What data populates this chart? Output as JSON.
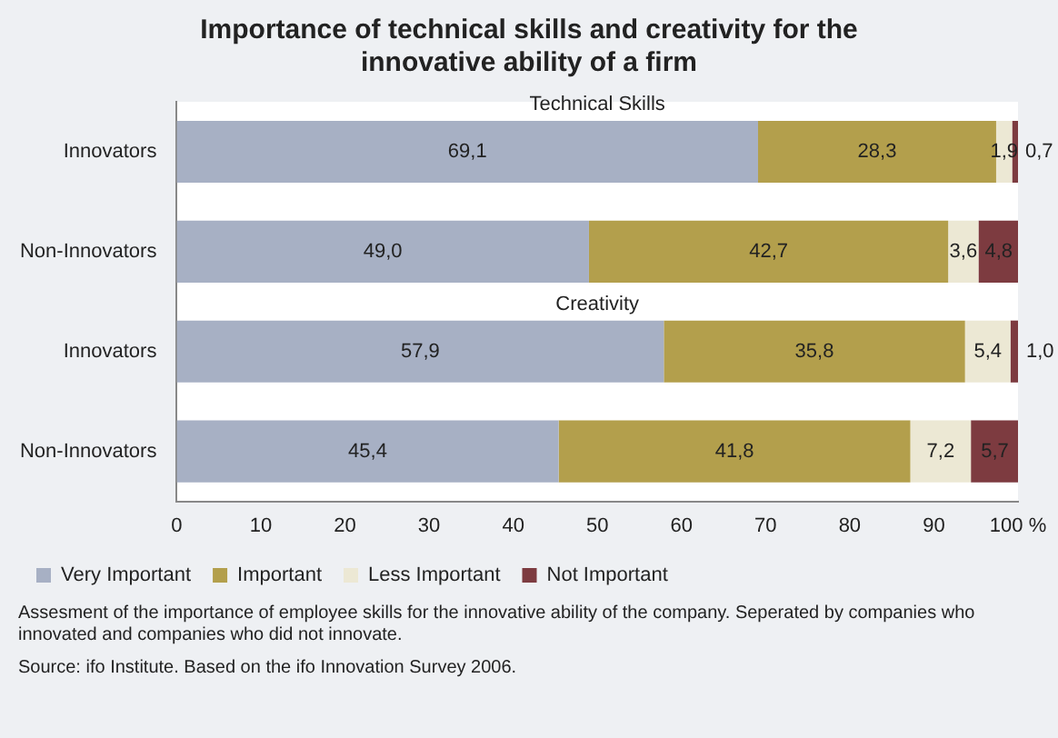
{
  "chart_data": {
    "type": "bar",
    "orientation": "horizontal",
    "stacked": true,
    "title": "Importance of technical skills and creativity for the innovative ability of a firm",
    "categories": [
      "Innovators",
      "Non-Innovators",
      "Innovators",
      "Non-Innovators"
    ],
    "series": [
      {
        "name": "Very Important",
        "color": "#a7b0c4",
        "values": [
          69.1,
          49.0,
          57.9,
          45.4
        ],
        "value_labels": [
          "69,1",
          "49,0",
          "57,9",
          "45,4"
        ]
      },
      {
        "name": "Important",
        "color": "#b39f4c",
        "values": [
          28.3,
          42.7,
          35.8,
          41.8
        ],
        "value_labels": [
          "28,3",
          "42,7",
          "35,8",
          "41,8"
        ]
      },
      {
        "name": "Less Important",
        "color": "#ece8d4",
        "values": [
          1.9,
          3.6,
          5.4,
          7.2
        ],
        "value_labels": [
          "1,9",
          "3,6",
          "5,4",
          "7,2"
        ]
      },
      {
        "name": "Not Important",
        "color": "#7d3b40",
        "values": [
          0.7,
          4.8,
          1.0,
          5.7
        ],
        "value_labels": [
          "0,7",
          "4,8",
          "1,0",
          "5,7"
        ]
      }
    ],
    "xlim": [
      0,
      100
    ],
    "xticks": [
      0,
      10,
      20,
      30,
      40,
      50,
      60,
      70,
      80,
      90,
      {
        "value": 100,
        "label": "100 %"
      }
    ],
    "legend": "bottom",
    "annotations": [
      "Technical Skills",
      "Creativity",
      "Assesment of the importance of employee skills for the innovative ability of the company. Seperated by companies who innovated and companies who did not innovate.",
      "Source: ifo Institute. Based on the ifo Innovation Survey 2006."
    ]
  }
}
